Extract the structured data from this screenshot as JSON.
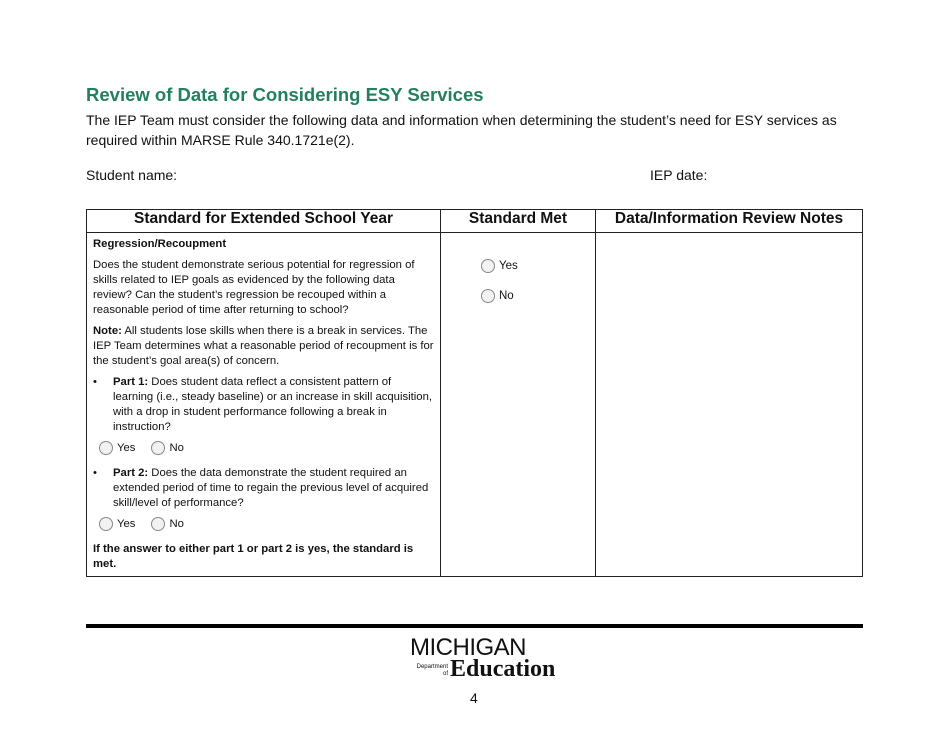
{
  "title": "Review of Data for Considering ESY Services",
  "intro": "The IEP Team must consider the following data and information when determining the student’s need for ESY services as required within MARSE Rule 340.1721e(2).",
  "student_name_label": "Student name:",
  "iep_date_label": "IEP date:",
  "table": {
    "headers": [
      "Standard for Extended School Year",
      "Standard Met",
      "Data/Information Review Notes"
    ],
    "section": "Regression/Recoupment",
    "question": "Does the student demonstrate serious potential for regression of skills related to IEP goals as evidenced by the following data review? Can the student’s regression be recouped within a reasonable period of time after returning to school?",
    "note_label": "Note:",
    "note": " All students lose skills when there is a break in services. The IEP Team determines what a reasonable period of recoupment is for the student’s goal area(s) of concern.",
    "part1_label": "Part 1:",
    "part1": " Does student data reflect a consistent pattern of learning (i.e., steady baseline) or an increase in skill acquisition, with a drop in student performance following a break in instruction?",
    "part2_label": "Part 2:",
    "part2": " Does the data demonstrate the student required an extended period of time to regain the previous level of acquired skill/level of performance?",
    "yes": "Yes",
    "no": "No",
    "conclusion": "If the answer to either part 1 or part 2 is yes, the standard is met."
  },
  "footer": {
    "logo_text": "MICHIGAN Department of Education",
    "page_number": "4"
  }
}
